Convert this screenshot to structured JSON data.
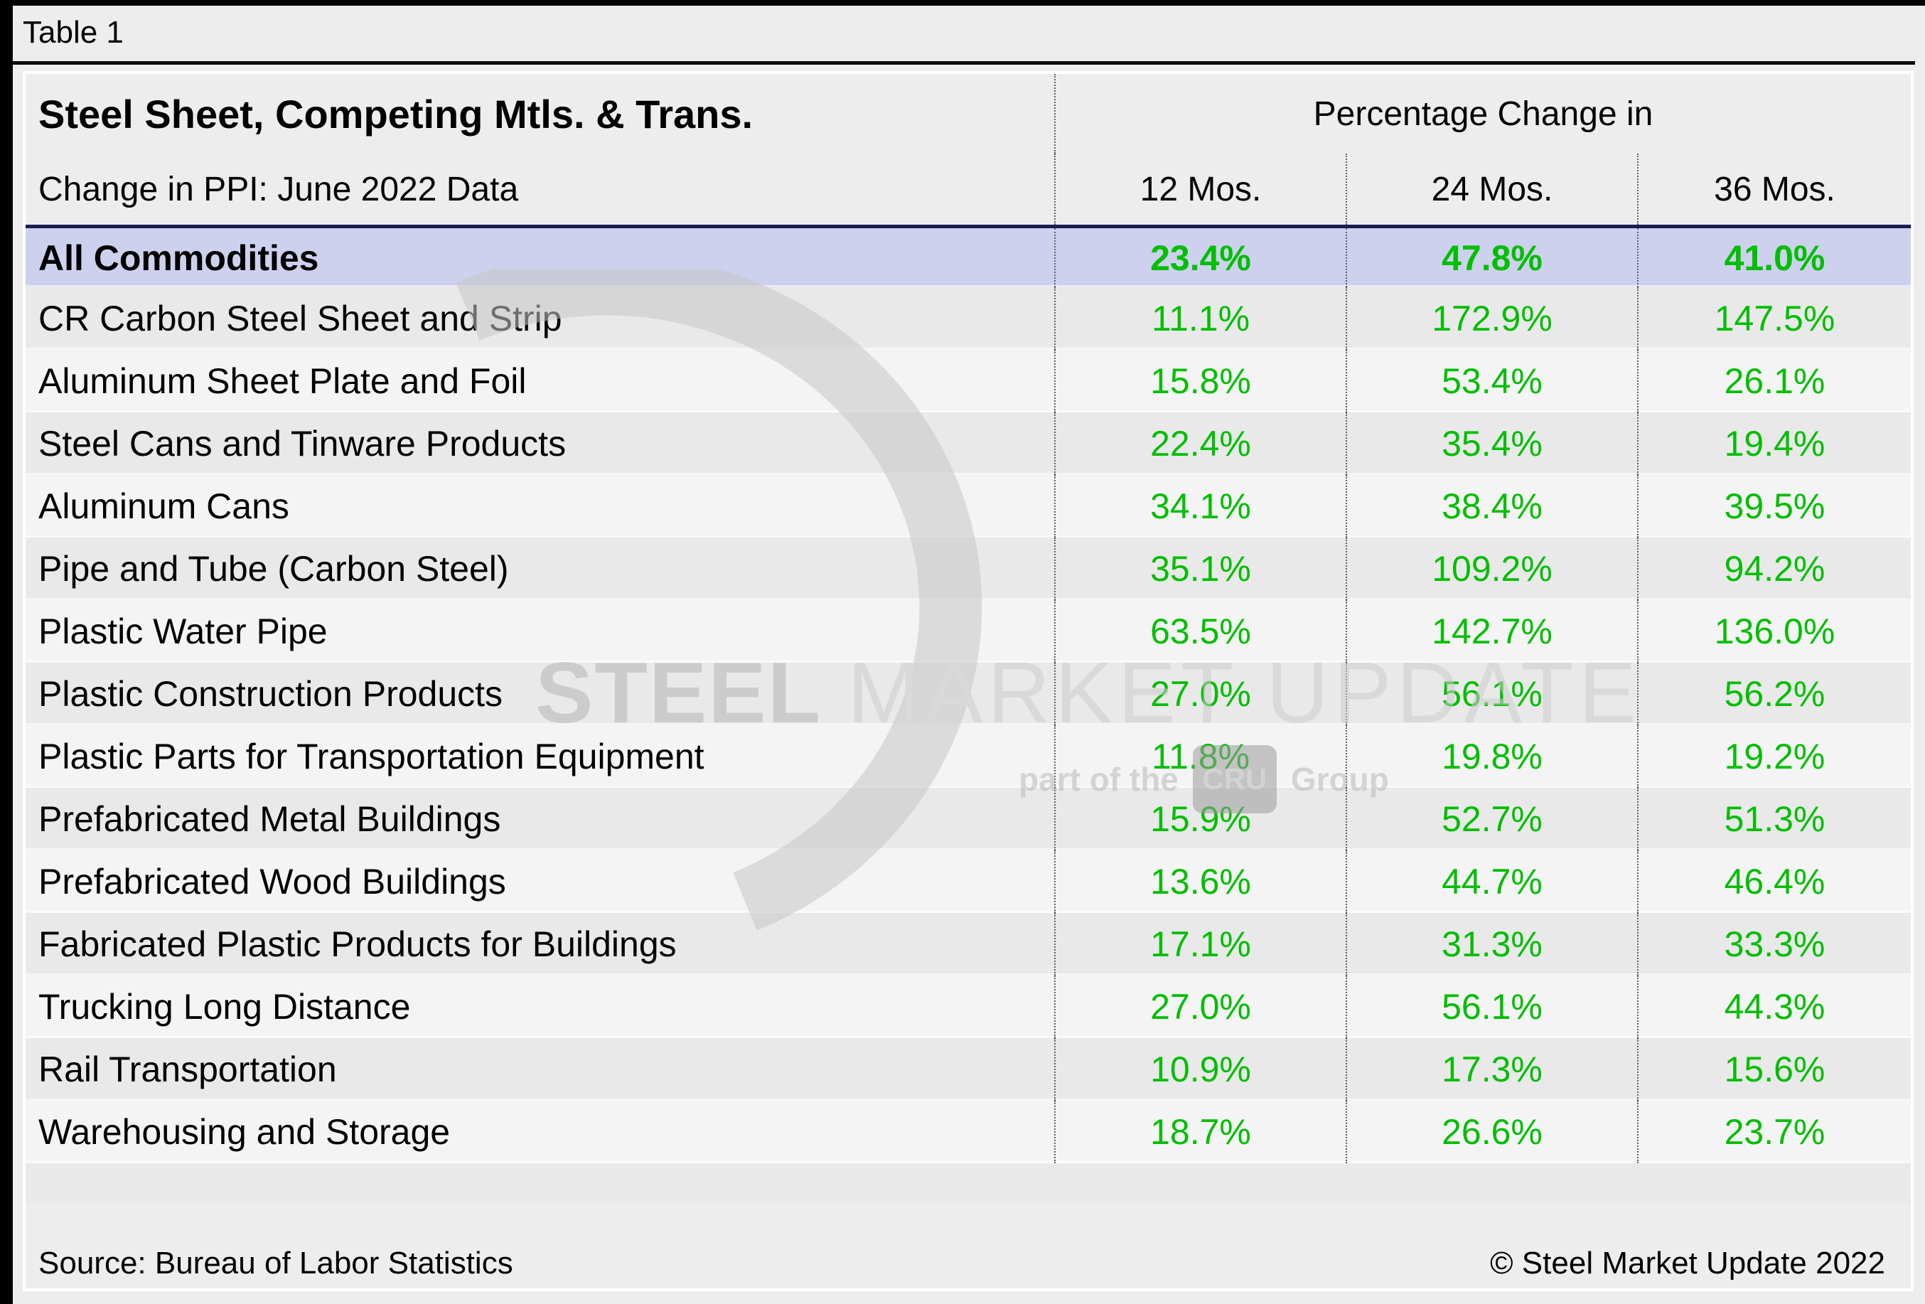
{
  "page": {
    "table_label": "Table 1"
  },
  "table": {
    "title": "Steel Sheet, Competing Mtls. & Trans.",
    "subtitle": "Change in PPI: June 2022 Data",
    "col_group_header": "Percentage Change in",
    "columns": [
      "12 Mos.",
      "24 Mos.",
      "36 Mos."
    ],
    "rows": [
      {
        "label": "All Commodities",
        "values": [
          "23.4%",
          "47.8%",
          "41.0%"
        ],
        "highlight": true
      },
      {
        "label": "CR Carbon Steel Sheet and Strip",
        "values": [
          "11.1%",
          "172.9%",
          "147.5%"
        ]
      },
      {
        "label": "Aluminum Sheet Plate and Foil",
        "values": [
          "15.8%",
          "53.4%",
          "26.1%"
        ]
      },
      {
        "label": "Steel Cans and Tinware Products",
        "values": [
          "22.4%",
          "35.4%",
          "19.4%"
        ]
      },
      {
        "label": "Aluminum Cans",
        "values": [
          "34.1%",
          "38.4%",
          "39.5%"
        ]
      },
      {
        "label": "Pipe and Tube (Carbon Steel)",
        "values": [
          "35.1%",
          "109.2%",
          "94.2%"
        ]
      },
      {
        "label": "Plastic Water Pipe",
        "values": [
          "63.5%",
          "142.7%",
          "136.0%"
        ]
      },
      {
        "label": "Plastic Construction Products",
        "values": [
          "27.0%",
          "56.1%",
          "56.2%"
        ]
      },
      {
        "label": "Plastic Parts for Transportation Equipment",
        "values": [
          "11.8%",
          "19.8%",
          "19.2%"
        ]
      },
      {
        "label": "Prefabricated Metal Buildings",
        "values": [
          "15.9%",
          "52.7%",
          "51.3%"
        ]
      },
      {
        "label": "Prefabricated Wood Buildings",
        "values": [
          "13.6%",
          "44.7%",
          "46.4%"
        ]
      },
      {
        "label": "Fabricated Plastic Products for Buildings",
        "values": [
          "17.1%",
          "31.3%",
          "33.3%"
        ]
      },
      {
        "label": "Trucking Long Distance",
        "values": [
          "27.0%",
          "56.1%",
          "44.3%"
        ]
      },
      {
        "label": "Rail Transportation",
        "values": [
          "10.9%",
          "17.3%",
          "15.6%"
        ]
      },
      {
        "label": "Warehousing and Storage",
        "values": [
          "18.7%",
          "26.6%",
          "23.7%"
        ]
      }
    ],
    "source": "Source: Bureau of Labor Statistics",
    "copyright": "© Steel Market Update 2022"
  },
  "watermark": {
    "brand_bold": "STEEL",
    "brand_light": "MARKET UPDATE",
    "tagline_prefix": "part of the",
    "tagline_logo": "CRU",
    "tagline_suffix": "Group"
  },
  "colors": {
    "accent_green": "#00BE00",
    "highlight_row": "#CDD1EE",
    "navy_border": "#1C1C54",
    "stripe_dark": "#E9E9E9",
    "stripe_light": "#F4F4F4"
  },
  "chart_data": {
    "type": "table",
    "title": "Steel Sheet, Competing Mtls. & Trans.",
    "subtitle": "Change in PPI: June 2022 Data",
    "column_group": "Percentage Change in",
    "columns": [
      "12 Mos.",
      "24 Mos.",
      "36 Mos."
    ],
    "rows": [
      {
        "label": "All Commodities",
        "values_pct": [
          23.4,
          47.8,
          41.0
        ]
      },
      {
        "label": "CR Carbon Steel Sheet and Strip",
        "values_pct": [
          11.1,
          172.9,
          147.5
        ]
      },
      {
        "label": "Aluminum Sheet Plate and Foil",
        "values_pct": [
          15.8,
          53.4,
          26.1
        ]
      },
      {
        "label": "Steel Cans and Tinware Products",
        "values_pct": [
          22.4,
          35.4,
          19.4
        ]
      },
      {
        "label": "Aluminum Cans",
        "values_pct": [
          34.1,
          38.4,
          39.5
        ]
      },
      {
        "label": "Pipe and Tube (Carbon Steel)",
        "values_pct": [
          35.1,
          109.2,
          94.2
        ]
      },
      {
        "label": "Plastic Water Pipe",
        "values_pct": [
          63.5,
          142.7,
          136.0
        ]
      },
      {
        "label": "Plastic Construction Products",
        "values_pct": [
          27.0,
          56.1,
          56.2
        ]
      },
      {
        "label": "Plastic Parts for Transportation Equipment",
        "values_pct": [
          11.8,
          19.8,
          19.2
        ]
      },
      {
        "label": "Prefabricated Metal Buildings",
        "values_pct": [
          15.9,
          52.7,
          51.3
        ]
      },
      {
        "label": "Prefabricated Wood Buildings",
        "values_pct": [
          13.6,
          44.7,
          46.4
        ]
      },
      {
        "label": "Fabricated Plastic Products for Buildings",
        "values_pct": [
          17.1,
          31.3,
          33.3
        ]
      },
      {
        "label": "Trucking Long Distance",
        "values_pct": [
          27.0,
          56.1,
          44.3
        ]
      },
      {
        "label": "Rail Transportation",
        "values_pct": [
          10.9,
          17.3,
          15.6
        ]
      },
      {
        "label": "Warehousing and Storage",
        "values_pct": [
          18.7,
          26.6,
          23.7
        ]
      }
    ],
    "source": "Bureau of Labor Statistics"
  }
}
